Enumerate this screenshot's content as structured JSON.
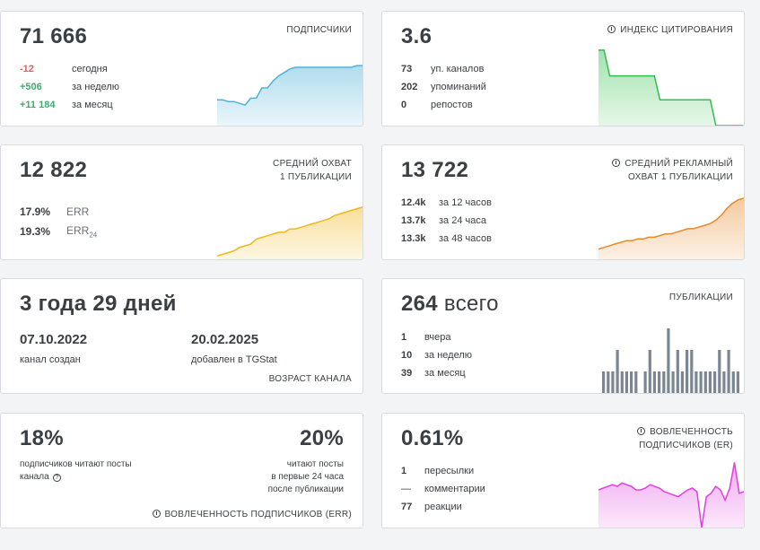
{
  "subscribers": {
    "value": "71 666",
    "label": "ПОДПИСЧИКИ",
    "stats": [
      {
        "value": "-12",
        "text": "сегодня",
        "tone": "red"
      },
      {
        "value": "+506",
        "text": "за неделю",
        "tone": "green"
      },
      {
        "value": "+11 184",
        "text": "за месяц",
        "tone": "green"
      }
    ]
  },
  "citation": {
    "value": "3.6",
    "label": "ИНДЕКС ЦИТИРОВАНИЯ",
    "stats": [
      {
        "value": "73",
        "text": "уп. каналов"
      },
      {
        "value": "202",
        "text": "упоминаний"
      },
      {
        "value": "0",
        "text": "репостов"
      }
    ]
  },
  "reach": {
    "value": "12 822",
    "label_line1": "СРЕДНИЙ ОХВАТ",
    "label_line2": "1 ПУБЛИКАЦИИ",
    "stats": [
      {
        "value": "17.9%",
        "text": "ERR",
        "sub": ""
      },
      {
        "value": "19.3%",
        "text": "ERR",
        "sub": "24"
      }
    ]
  },
  "ad_reach": {
    "value": "13 722",
    "label_line1": "СРЕДНИЙ РЕКЛАМНЫЙ",
    "label_line2": "ОХВАТ 1 ПУБЛИКАЦИИ",
    "stats": [
      {
        "value": "12.4k",
        "text": "за 12 часов"
      },
      {
        "value": "13.7k",
        "text": "за 24 часа"
      },
      {
        "value": "13.3k",
        "text": "за 48 часов"
      }
    ]
  },
  "age": {
    "value": "3 года 29 дней",
    "created_date": "07.10.2022",
    "created_text": "канал создан",
    "added_date": "20.02.2025",
    "added_text": "добавлен в TGStat",
    "label": "ВОЗРАСТ КАНАЛА"
  },
  "posts": {
    "value": "264",
    "value_suffix": "всего",
    "label": "ПУБЛИКАЦИИ",
    "stats": [
      {
        "value": "1",
        "text": "вчера"
      },
      {
        "value": "10",
        "text": "за неделю"
      },
      {
        "value": "39",
        "text": "за месяц"
      }
    ]
  },
  "err": {
    "left_value": "18%",
    "left_text_line1": "подписчиков читают посты",
    "left_text_line2": "канала",
    "right_value": "20%",
    "right_text_line1": "читают посты",
    "right_text_line2": "в первые 24 часа",
    "right_text_line3": "после публикации",
    "label": "ВОВЛЕЧЕННОСТЬ ПОДПИСЧИКОВ (ERR)"
  },
  "er": {
    "value": "0.61%",
    "label_line1": "ВОВЛЕЧЕННОСТЬ",
    "label_line2": "ПОДПИСЧИКОВ (ER)",
    "stats": [
      {
        "value": "1",
        "text": "пересылки"
      },
      {
        "value": "—",
        "text": "комментарии"
      },
      {
        "value": "77",
        "text": "реакции"
      }
    ]
  },
  "colors": {
    "subscribers": "#4fb3d9",
    "citation": "#2fbf4a",
    "reach": "#f0b81a",
    "ad_reach": "#e8892a",
    "posts": "#7a8793",
    "er": "#e040e0"
  },
  "chart_data": [
    {
      "type": "area",
      "name": "subscribers-trend",
      "values": [
        30,
        30,
        28,
        28,
        26,
        24,
        32,
        32,
        44,
        44,
        52,
        58,
        62,
        66,
        68,
        68,
        68,
        68,
        68,
        68,
        68,
        68,
        68,
        68,
        68,
        70,
        70
      ]
    },
    {
      "type": "area",
      "name": "citation-trend",
      "values": [
        88,
        88,
        58,
        58,
        58,
        58,
        58,
        58,
        58,
        58,
        58,
        30,
        30,
        30,
        30,
        30,
        30,
        30,
        30,
        30,
        30,
        0,
        0,
        0,
        0,
        0,
        0
      ]
    },
    {
      "type": "area",
      "name": "reach-trend",
      "values": [
        4,
        6,
        8,
        10,
        14,
        16,
        18,
        24,
        26,
        28,
        30,
        32,
        32,
        36,
        36,
        38,
        40,
        42,
        44,
        46,
        48,
        52,
        54,
        56,
        58,
        60,
        62
      ]
    },
    {
      "type": "area",
      "name": "ad-reach-trend",
      "values": [
        12,
        14,
        16,
        18,
        20,
        22,
        22,
        24,
        24,
        26,
        26,
        28,
        30,
        30,
        32,
        34,
        36,
        36,
        38,
        40,
        42,
        46,
        52,
        60,
        66,
        70,
        72
      ]
    },
    {
      "type": "bar",
      "name": "posts-per-day",
      "values": [
        1,
        1,
        1,
        2,
        1,
        1,
        1,
        1,
        0,
        1,
        2,
        1,
        1,
        1,
        3,
        1,
        2,
        1,
        2,
        2,
        1,
        1,
        1,
        1,
        1,
        2,
        1,
        2,
        1,
        1
      ]
    },
    {
      "type": "area",
      "name": "er-trend",
      "values": [
        44,
        46,
        48,
        50,
        48,
        52,
        50,
        48,
        44,
        44,
        46,
        50,
        48,
        46,
        42,
        40,
        38,
        36,
        40,
        44,
        46,
        42,
        0,
        36,
        40,
        48,
        44,
        32,
        46,
        76,
        40,
        42
      ]
    }
  ]
}
